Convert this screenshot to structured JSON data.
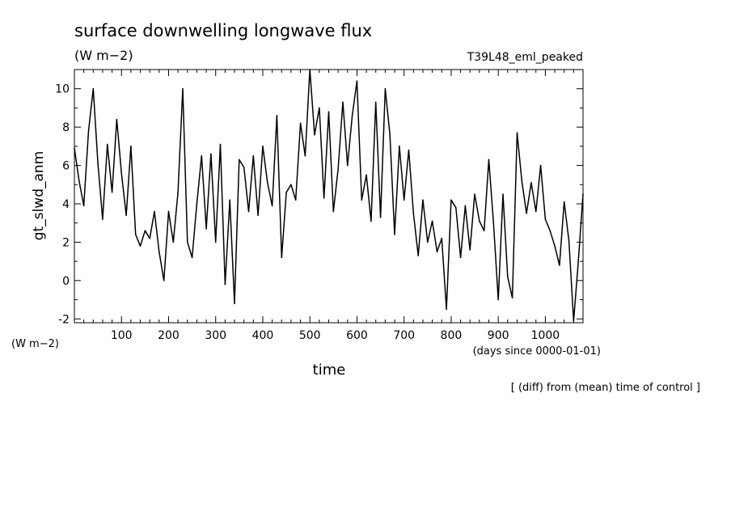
{
  "chart_data": {
    "type": "line",
    "title": "surface downwelling longwave flux",
    "units": "(W m−2)",
    "run_label": "T39L48_eml_peaked",
    "ylabel": "gt_slwd_anm",
    "yunits": "(W m−2)",
    "xlabel": "time",
    "xunits": "(days since 0000-01-01)",
    "note": "[ (diff) from (mean) time of control ]",
    "xlim": [
      0,
      1080
    ],
    "ylim": [
      -2.2,
      11.0
    ],
    "x_ticks": [
      100,
      200,
      300,
      400,
      500,
      600,
      700,
      800,
      900,
      1000
    ],
    "y_ticks": [
      -2,
      0,
      2,
      4,
      6,
      8,
      10
    ],
    "line_color": "#000000",
    "x": [
      0,
      10,
      20,
      30,
      40,
      50,
      60,
      70,
      80,
      90,
      100,
      110,
      120,
      130,
      140,
      150,
      160,
      170,
      180,
      190,
      200,
      210,
      220,
      230,
      240,
      250,
      260,
      270,
      280,
      290,
      300,
      310,
      320,
      330,
      340,
      350,
      360,
      370,
      380,
      390,
      400,
      410,
      420,
      430,
      440,
      450,
      460,
      470,
      480,
      490,
      500,
      510,
      520,
      530,
      540,
      550,
      560,
      570,
      580,
      590,
      600,
      610,
      620,
      630,
      640,
      650,
      660,
      670,
      680,
      690,
      700,
      710,
      720,
      730,
      740,
      750,
      760,
      770,
      780,
      790,
      800,
      810,
      820,
      830,
      840,
      850,
      860,
      870,
      880,
      890,
      900,
      910,
      920,
      930,
      940,
      950,
      960,
      970,
      980,
      990,
      1000,
      1010,
      1020,
      1030,
      1040,
      1050,
      1060,
      1070,
      1080
    ],
    "series": [
      {
        "values": [
          6.9,
          5.2,
          3.9,
          7.8,
          10.0,
          6.1,
          3.2,
          7.1,
          4.6,
          8.4,
          5.6,
          3.4,
          7.0,
          2.4,
          1.8,
          2.6,
          2.2,
          3.6,
          1.5,
          0.0,
          3.6,
          2.0,
          4.6,
          10.0,
          2.0,
          1.2,
          4.0,
          6.5,
          2.7,
          6.6,
          2.0,
          7.1,
          -0.2,
          4.2,
          -1.2,
          6.3,
          5.9,
          3.6,
          6.5,
          3.4,
          7.0,
          5.1,
          3.9,
          8.6,
          1.2,
          4.6,
          5.0,
          4.2,
          8.2,
          6.5,
          11.0,
          7.6,
          9.0,
          4.3,
          8.8,
          3.6,
          5.8,
          9.3,
          6.0,
          8.6,
          10.4,
          4.2,
          5.5,
          3.1,
          9.3,
          3.3,
          10.0,
          7.6,
          2.4,
          7.0,
          4.2,
          6.8,
          3.5,
          1.3,
          4.2,
          2.0,
          3.1,
          1.5,
          2.2,
          -1.5,
          4.2,
          3.8,
          1.2,
          3.9,
          1.6,
          4.5,
          3.1,
          2.6,
          6.3,
          3.0,
          -1.0,
          4.5,
          0.2,
          -0.9,
          7.7,
          5.2,
          3.5,
          5.1,
          3.6,
          6.0,
          3.2,
          2.6,
          1.8,
          0.8,
          4.1,
          2.1,
          -2.1,
          1.0,
          4.5
        ]
      }
    ]
  }
}
